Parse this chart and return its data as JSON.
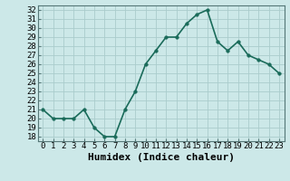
{
  "x": [
    0,
    1,
    2,
    3,
    4,
    5,
    6,
    7,
    8,
    9,
    10,
    11,
    12,
    13,
    14,
    15,
    16,
    17,
    18,
    19,
    20,
    21,
    22,
    23
  ],
  "y": [
    21,
    20,
    20,
    20,
    21,
    19,
    18,
    18,
    21,
    23,
    26,
    27.5,
    29,
    29,
    30.5,
    31.5,
    32,
    28.5,
    27.5,
    28.5,
    27,
    26.5,
    26,
    25
  ],
  "line_color": "#1a6b5a",
  "marker": "o",
  "markersize": 2.5,
  "linewidth": 1.2,
  "xlabel": "Humidex (Indice chaleur)",
  "ylabel": "",
  "xlim": [
    -0.5,
    23.5
  ],
  "ylim": [
    17.5,
    32.5
  ],
  "yticks": [
    18,
    19,
    20,
    21,
    22,
    23,
    24,
    25,
    26,
    27,
    28,
    29,
    30,
    31,
    32
  ],
  "xtick_labels": [
    "0",
    "1",
    "2",
    "3",
    "4",
    "5",
    "6",
    "7",
    "8",
    "9",
    "10",
    "11",
    "12",
    "13",
    "14",
    "15",
    "16",
    "17",
    "18",
    "19",
    "20",
    "21",
    "22",
    "23"
  ],
  "bg_color": "#cce8e8",
  "grid_color": "#aacccc",
  "tick_fontsize": 6.5,
  "xlabel_fontsize": 8,
  "spine_color": "#557777"
}
